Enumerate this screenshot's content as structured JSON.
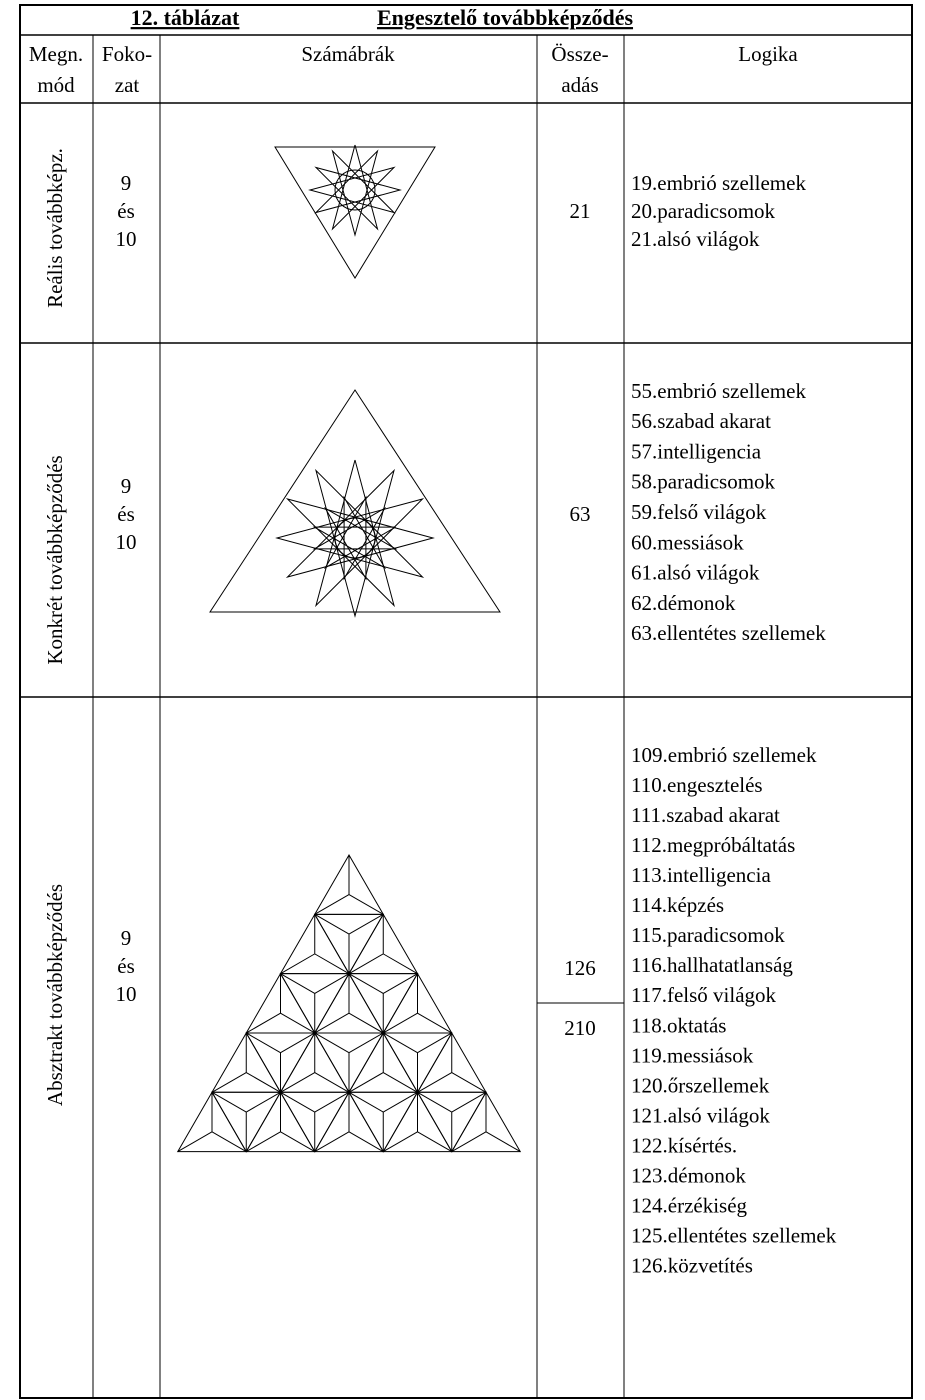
{
  "title": {
    "number": "12. táblázat",
    "name": "Engesztelő továbbképződés"
  },
  "table": {
    "header": [
      [
        "Megn.",
        "mód"
      ],
      [
        "Foko-",
        "zat"
      ],
      [
        "Számábrák"
      ],
      [
        "Össze-",
        "adás"
      ],
      [
        "Logika"
      ]
    ],
    "rows": [
      {
        "method": "Reális továbbképz.",
        "grade": [
          "9",
          "és",
          "10"
        ],
        "sum": [
          "21"
        ],
        "logic": [
          "19.embrió szellemek",
          "20.paradicsomok",
          "21.alsó világok"
        ]
      },
      {
        "method": "Konkrét továbbképződés",
        "grade": [
          "9",
          "és",
          "10"
        ],
        "sum": [
          "63"
        ],
        "logic": [
          "55.embrió szellemek",
          "56.szabad akarat",
          "57.intelligencia",
          "58.paradicsomok",
          "59.felső világok",
          "60.messiások",
          "61.alsó világok",
          "62.démonok",
          "63.ellentétes szellemek"
        ]
      },
      {
        "method": "Absztrakt  továbbképződés",
        "grade": [
          "9",
          "és",
          "10"
        ],
        "sum": [
          "126",
          "210"
        ],
        "logic": [
          "109.embrió szellemek",
          "110.engesztelés",
          "111.szabad akarat",
          "112.megpróbáltatás",
          "113.intelligencia",
          "114.képzés",
          "115.paradicsomok",
          "116.hallhatatlanság",
          "117.felső világok",
          "118.oktatás",
          "119.messiások",
          "120.őrszellemek",
          "121.alsó világok",
          "122.kísértés.",
          "123.démonok",
          "124.érzékiség",
          "125.ellentétes szellemek",
          "126.közvetítés"
        ]
      }
    ]
  }
}
